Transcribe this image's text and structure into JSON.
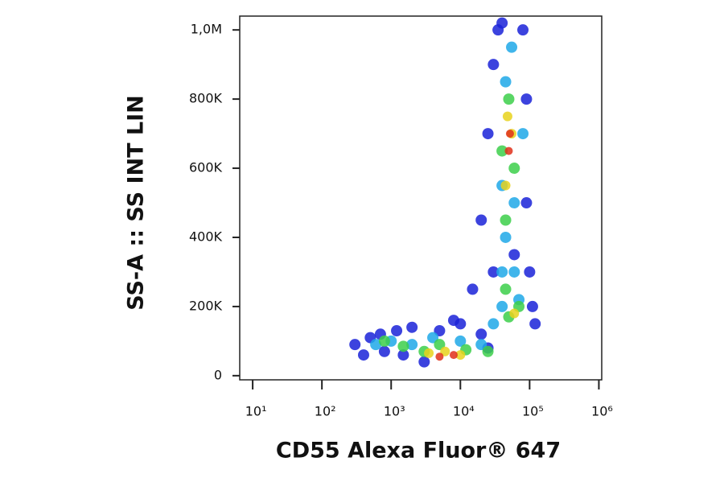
{
  "chart_data": {
    "type": "scatter",
    "x_label": "CD55 Alexa Fluor® 647",
    "y_label": "SS-A :: SS INT LIN",
    "xscale": "log",
    "xlim": [
      6.5,
      1100000
    ],
    "xticks": [
      {
        "value": 10,
        "label": "10¹"
      },
      {
        "value": 100,
        "label": "10²"
      },
      {
        "value": 1000,
        "label": "10³"
      },
      {
        "value": 10000,
        "label": "10⁴"
      },
      {
        "value": 100000,
        "label": "10⁵"
      },
      {
        "value": 1000000,
        "label": "10⁶"
      }
    ],
    "ylim": [
      -12000,
      1040000
    ],
    "yticks": [
      0,
      {
        "value": 200000,
        "label": "200K"
      },
      {
        "value": 400000,
        "label": "400K"
      },
      {
        "value": 600000,
        "label": "600K"
      },
      {
        "value": 800000,
        "label": "800K"
      },
      {
        "value": 1000000,
        "label": "1,0M"
      }
    ],
    "series": [
      {
        "color": "#1a22d8",
        "x": [
          300,
          500,
          800,
          1200,
          2000,
          3000,
          5000,
          10000,
          20000,
          30000,
          20000,
          25000,
          30000,
          35000,
          80000,
          90000,
          90000,
          100000,
          120000,
          60000,
          15000,
          1500,
          700,
          40000,
          110000,
          8000,
          400,
          25000
        ],
        "values": [
          90000,
          110000,
          70000,
          130000,
          140000,
          40000,
          130000,
          150000,
          120000,
          300000,
          450000,
          700000,
          900000,
          1000000,
          1000000,
          800000,
          500000,
          300000,
          150000,
          350000,
          250000,
          60000,
          120000,
          1020000,
          200000,
          160000,
          60000,
          80000
        ]
      },
      {
        "color": "#1fa8e8",
        "x": [
          1000,
          2000,
          4000,
          10000,
          20000,
          40000,
          70000,
          45000,
          40000,
          60000,
          45000,
          55000,
          80000,
          30000,
          600,
          40000,
          60000
        ],
        "values": [
          100000,
          90000,
          110000,
          100000,
          90000,
          200000,
          220000,
          400000,
          550000,
          500000,
          850000,
          950000,
          700000,
          150000,
          90000,
          300000,
          300000
        ]
      },
      {
        "color": "#3ccf4a",
        "x": [
          1500,
          3000,
          5000,
          12000,
          25000,
          50000,
          45000,
          50000,
          40000,
          60000,
          70000,
          800,
          45000
        ],
        "values": [
          85000,
          70000,
          90000,
          75000,
          70000,
          170000,
          450000,
          800000,
          650000,
          600000,
          200000,
          100000,
          250000
        ]
      },
      {
        "color": "#e8d21c",
        "x": [
          3500,
          6000,
          10000,
          45000,
          55000,
          48000,
          60000
        ],
        "values": [
          65000,
          70000,
          60000,
          550000,
          700000,
          750000,
          180000
        ]
      },
      {
        "color": "#e0301a",
        "x": [
          5000,
          8000,
          50000,
          52000
        ],
        "values": [
          55000,
          60000,
          650000,
          700000
        ]
      }
    ]
  }
}
